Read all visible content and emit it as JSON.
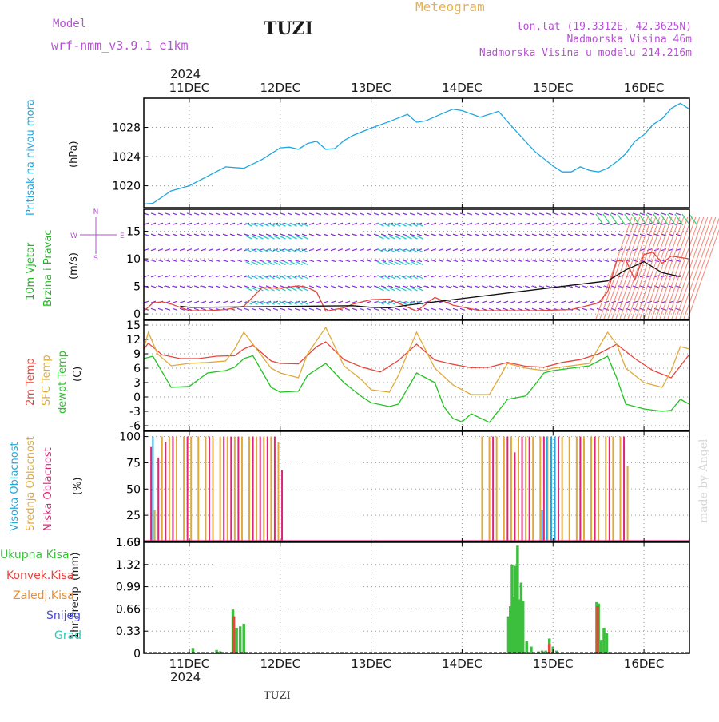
{
  "header": {
    "model_label": "Model",
    "model_name": "wrf-nmm_v3.9.1  e1km",
    "station": "TUZI",
    "meteogram": "Meteogram",
    "lonlat": "lon,lat (19.3312E, 42.3625N)",
    "elevation": "Nadmorska Visina 46m",
    "model_elevation": "Nadmorska Visina u modelu 214.216m",
    "year": "2024",
    "footer_station": "TUZI",
    "credit": "made by Angel"
  },
  "colors": {
    "pressure": "#1ea7e1",
    "t2m": "#e8453c",
    "sfc": "#e0a93b",
    "dew": "#22c322",
    "high_cloud": "#22a8e0",
    "mid_cloud": "#e0a93b",
    "low_cloud": "#e0267a",
    "wind_label": "#22b822",
    "wind_dir_label": "#b84fd6",
    "total_precip": "#3cbf3c",
    "conv_precip": "#e8453c",
    "frz_precip": "#f08a2c",
    "snow": "#4b4bd8",
    "grad": "#2ec9b7",
    "meteogram_title": "#e8b14a",
    "info_text": "#b84fd6"
  },
  "chart_data": [
    {
      "type": "line",
      "panel": "pressure",
      "ylabel_main": "Pritisak na nivou mora",
      "ylabel_unit": "(hPa)",
      "x_ticks": [
        "11DEC",
        "12DEC",
        "13DEC",
        "14DEC",
        "15DEC",
        "16DEC"
      ],
      "x_days": [
        0.5,
        6.5
      ],
      "y_ticks": [
        1020,
        1024,
        1028
      ],
      "ylim": [
        1017,
        1032
      ],
      "grid": true,
      "series": [
        {
          "color_key": "pressure",
          "x": [
            0.5,
            0.6,
            0.8,
            1.0,
            1.2,
            1.4,
            1.6,
            1.7,
            1.8,
            2.0,
            2.1,
            2.2,
            2.3,
            2.4,
            2.5,
            2.6,
            2.7,
            2.8,
            3.0,
            3.2,
            3.4,
            3.5,
            3.6,
            3.8,
            3.9,
            4.0,
            4.2,
            4.4,
            4.6,
            4.8,
            5.0,
            5.1,
            5.2,
            5.3,
            5.4,
            5.5,
            5.6,
            5.7,
            5.8,
            5.9,
            6.0,
            6.1,
            6.2,
            6.3,
            6.4,
            6.5
          ],
          "y": [
            1017.5,
            1017.6,
            1019.3,
            1020.0,
            1021.3,
            1022.6,
            1022.4,
            1023.0,
            1023.6,
            1025.2,
            1025.3,
            1025.0,
            1025.8,
            1026.1,
            1025.0,
            1025.1,
            1026.2,
            1026.9,
            1027.9,
            1028.8,
            1029.8,
            1028.7,
            1028.9,
            1030.0,
            1030.5,
            1030.3,
            1029.4,
            1030.2,
            1027.4,
            1024.7,
            1022.7,
            1021.9,
            1021.9,
            1022.6,
            1022.1,
            1021.9,
            1022.4,
            1023.3,
            1024.4,
            1026.1,
            1027.0,
            1028.4,
            1029.2,
            1030.6,
            1031.3,
            1030.5
          ]
        }
      ]
    },
    {
      "type": "line",
      "panel": "wind",
      "ylabel_main": "10m Vjetar",
      "ylabel_sub": "Brzina i Pravac",
      "ylabel_unit": "(m/s)",
      "compass": {
        "north": "N",
        "west": "W",
        "east": "E",
        "south": "S"
      },
      "y_ticks": [
        0,
        5,
        10,
        15
      ],
      "ylim": [
        -1,
        19
      ],
      "grid": true,
      "series": [
        {
          "name": "speed",
          "color_key": "conv_precip",
          "x": [
            0.5,
            0.6,
            0.7,
            0.8,
            0.9,
            1.0,
            1.2,
            1.4,
            1.6,
            1.8,
            2.0,
            2.2,
            2.3,
            2.4,
            2.5,
            2.7,
            2.8,
            3.0,
            3.2,
            3.5,
            3.7,
            3.9,
            4.2,
            4.5,
            4.8,
            5.2,
            5.5,
            5.6,
            5.7,
            5.8,
            5.9,
            6.0,
            6.1,
            6.2,
            6.3,
            6.5
          ],
          "y": [
            0.5,
            2.0,
            2.2,
            1.8,
            1.2,
            0.6,
            0.6,
            0.8,
            1.4,
            4.8,
            4.7,
            5.1,
            4.8,
            4.0,
            0.5,
            1.1,
            1.8,
            2.6,
            2.7,
            0.5,
            3.0,
            1.6,
            0.6,
            0.6,
            0.6,
            0.8,
            2.0,
            4.0,
            9.6,
            9.8,
            6.2,
            10.8,
            11.2,
            9.2,
            10.5,
            10.0
          ]
        },
        {
          "name": "gust",
          "color_key": "dark",
          "x": [
            0.9,
            1.0,
            1.1,
            2.8,
            3.0,
            3.2,
            3.4,
            5.6,
            5.8,
            6.0,
            6.2,
            6.4
          ],
          "y": [
            1.4,
            1.2,
            1.2,
            1.5,
            1.2,
            1.1,
            1.6,
            6.0,
            8.0,
            9.5,
            7.5,
            6.8
          ]
        }
      ]
    },
    {
      "type": "line",
      "panel": "temperature",
      "ylabel_t2m": "2m Temp",
      "ylabel_sfc": "SFC Temp",
      "ylabel_dew": "dewpt Temp",
      "ylabel_unit": "(C)",
      "y_ticks": [
        -6,
        -3,
        0,
        3,
        6,
        9,
        12,
        15
      ],
      "ylim": [
        -7,
        16
      ],
      "grid": true,
      "series": [
        {
          "name": "2m Temp",
          "color_key": "t2m",
          "x": [
            0.5,
            0.55,
            0.7,
            0.9,
            1.1,
            1.3,
            1.5,
            1.6,
            1.7,
            1.9,
            2.0,
            2.2,
            2.4,
            2.5,
            2.7,
            2.9,
            3.1,
            3.3,
            3.5,
            3.7,
            3.9,
            4.1,
            4.3,
            4.5,
            4.7,
            4.9,
            5.1,
            5.3,
            5.5,
            5.7,
            5.9,
            6.1,
            6.3,
            6.5
          ],
          "y": [
            10.0,
            11.2,
            8.8,
            8.0,
            8.0,
            8.5,
            8.6,
            10.0,
            10.8,
            7.5,
            7.0,
            6.9,
            10.5,
            11.5,
            7.8,
            6.2,
            5.2,
            7.6,
            11.0,
            7.7,
            6.8,
            6.1,
            6.2,
            7.2,
            6.4,
            6.2,
            7.2,
            7.8,
            9.0,
            11.0,
            8.0,
            5.5,
            4.0,
            8.9
          ]
        },
        {
          "name": "SFC Temp",
          "color_key": "sfc",
          "x": [
            0.5,
            0.55,
            0.65,
            0.8,
            1.0,
            1.2,
            1.4,
            1.5,
            1.6,
            1.7,
            1.9,
            2.0,
            2.2,
            2.3,
            2.5,
            2.7,
            2.9,
            3.0,
            3.2,
            3.3,
            3.5,
            3.7,
            3.9,
            4.1,
            4.3,
            4.5,
            4.7,
            4.9,
            5.0,
            5.2,
            5.4,
            5.6,
            5.7,
            5.8,
            6.0,
            6.2,
            6.3,
            6.4,
            6.5
          ],
          "y": [
            10.0,
            13.5,
            9.0,
            6.5,
            7.0,
            7.2,
            7.5,
            10.0,
            13.5,
            11.0,
            6.0,
            5.0,
            4.0,
            9.0,
            14.5,
            6.5,
            3.5,
            1.5,
            1.0,
            4.5,
            13.5,
            6.0,
            2.5,
            0.5,
            0.5,
            7.0,
            6.0,
            5.5,
            6.0,
            6.5,
            7.0,
            13.5,
            11.0,
            6.0,
            3.0,
            2.0,
            5.5,
            10.5,
            10.0
          ]
        },
        {
          "name": "dewpt Temp",
          "color_key": "dew",
          "x": [
            0.5,
            0.6,
            0.8,
            1.0,
            1.2,
            1.4,
            1.5,
            1.6,
            1.7,
            1.9,
            2.0,
            2.2,
            2.3,
            2.5,
            2.7,
            2.9,
            3.0,
            3.2,
            3.3,
            3.5,
            3.7,
            3.8,
            3.9,
            4.0,
            4.1,
            4.3,
            4.5,
            4.7,
            4.8,
            4.9,
            5.0,
            5.2,
            5.4,
            5.6,
            5.7,
            5.8,
            6.0,
            6.2,
            6.3,
            6.4,
            6.5
          ],
          "y": [
            8.0,
            8.5,
            2.0,
            2.2,
            5.0,
            5.5,
            6.2,
            8.0,
            8.6,
            2.0,
            1.0,
            1.2,
            4.5,
            7.0,
            3.0,
            0.0,
            -1.2,
            -2.0,
            -1.5,
            5.0,
            3.0,
            -2.0,
            -4.5,
            -5.2,
            -3.5,
            -5.3,
            -0.5,
            0.2,
            2.5,
            5.0,
            5.5,
            6.0,
            6.5,
            8.5,
            4.0,
            -1.5,
            -2.5,
            -3.0,
            -2.8,
            -0.5,
            -1.5
          ]
        }
      ]
    },
    {
      "type": "bar",
      "panel": "clouds",
      "ylabel_high": "Visoka Oblacnost",
      "ylabel_mid": "Srednja Oblacnost",
      "ylabel_low": "Niska Oblacnost",
      "ylabel_unit": "(%)",
      "y_ticks": [
        0,
        25,
        50,
        75,
        100
      ],
      "ylim": [
        0,
        105
      ],
      "grid": true,
      "series": [
        {
          "name": "Srednja Oblacnost",
          "color_key": "mid_cloud",
          "x": [
            0.62,
            0.7,
            0.78,
            0.86,
            0.94,
            1.02,
            1.1,
            1.18,
            1.26,
            1.34,
            1.42,
            1.5,
            1.58,
            1.66,
            1.74,
            1.82,
            1.9,
            1.98,
            4.22,
            4.3,
            4.38,
            4.46,
            4.54,
            4.62,
            4.7,
            4.78,
            4.86,
            4.94,
            5.02,
            5.1,
            5.18,
            5.26,
            5.34,
            5.42,
            5.5,
            5.58,
            5.66,
            5.74,
            5.82
          ],
          "values": [
            30,
            100,
            100,
            100,
            100,
            100,
            100,
            100,
            100,
            100,
            100,
            100,
            100,
            100,
            100,
            100,
            100,
            95,
            100,
            100,
            100,
            100,
            100,
            100,
            100,
            100,
            100,
            100,
            100,
            100,
            100,
            100,
            100,
            100,
            100,
            100,
            100,
            100,
            72
          ]
        },
        {
          "name": "Niska Oblacnost",
          "color_key": "low_cloud",
          "x": [
            0.58,
            0.66,
            0.74,
            0.82,
            0.98,
            1.22,
            1.38,
            1.46,
            1.54,
            1.7,
            1.78,
            1.86,
            1.94,
            2.02,
            4.34,
            4.5,
            4.58,
            4.66,
            4.74,
            4.9,
            5.06,
            5.3,
            5.46,
            5.62,
            5.78
          ],
          "values": [
            90,
            80,
            95,
            100,
            100,
            100,
            100,
            100,
            100,
            100,
            100,
            100,
            100,
            68,
            100,
            100,
            85,
            100,
            100,
            100,
            100,
            100,
            100,
            100,
            100
          ]
        },
        {
          "name": "Visoka Oblacnost",
          "color_key": "high_cloud",
          "x": [
            0.6,
            4.88,
            4.93,
            4.98,
            5.02
          ],
          "values": [
            100,
            30,
            100,
            100,
            100
          ]
        }
      ]
    },
    {
      "type": "bar",
      "panel": "precip",
      "ylabel_main": "1hr Precip",
      "ylabel_unit": "(mm)",
      "legend": [
        "Ukupna Kisa",
        "Konvek.Kisa",
        "Zaledj.Kisa",
        "Snijeg",
        "Grad"
      ],
      "y_ticks": [
        0,
        0.33,
        0.66,
        0.99,
        1.32,
        1.65
      ],
      "ylim": [
        0,
        1.65
      ],
      "grid": true,
      "series": [
        {
          "name": "Ukupna Kisa",
          "color_key": "total_precip",
          "x": [
            1.04,
            1.3,
            1.34,
            1.48,
            1.52,
            1.56,
            1.6,
            4.51,
            4.53,
            4.55,
            4.57,
            4.59,
            4.61,
            4.63,
            4.65,
            4.67,
            4.71,
            4.76,
            4.84,
            4.88,
            4.92,
            4.96,
            5.0,
            5.04,
            5.48,
            5.5,
            5.53,
            5.56,
            5.59,
            5.61
          ],
          "values": [
            0.08,
            0.05,
            0.03,
            0.65,
            0.38,
            0.4,
            0.44,
            0.55,
            0.7,
            1.32,
            0.84,
            1.3,
            1.6,
            0.8,
            1.05,
            0.78,
            0.18,
            0.1,
            0.03,
            0.04,
            0.04,
            0.22,
            0.1,
            0.04,
            0.76,
            0.74,
            0.2,
            0.38,
            0.3,
            0.02
          ]
        },
        {
          "name": "Konvek.Kisa",
          "color_key": "conv_precip",
          "x": [
            1.49,
            4.96,
            5.49
          ],
          "values": [
            0.55,
            0.14,
            0.7
          ]
        }
      ]
    }
  ]
}
